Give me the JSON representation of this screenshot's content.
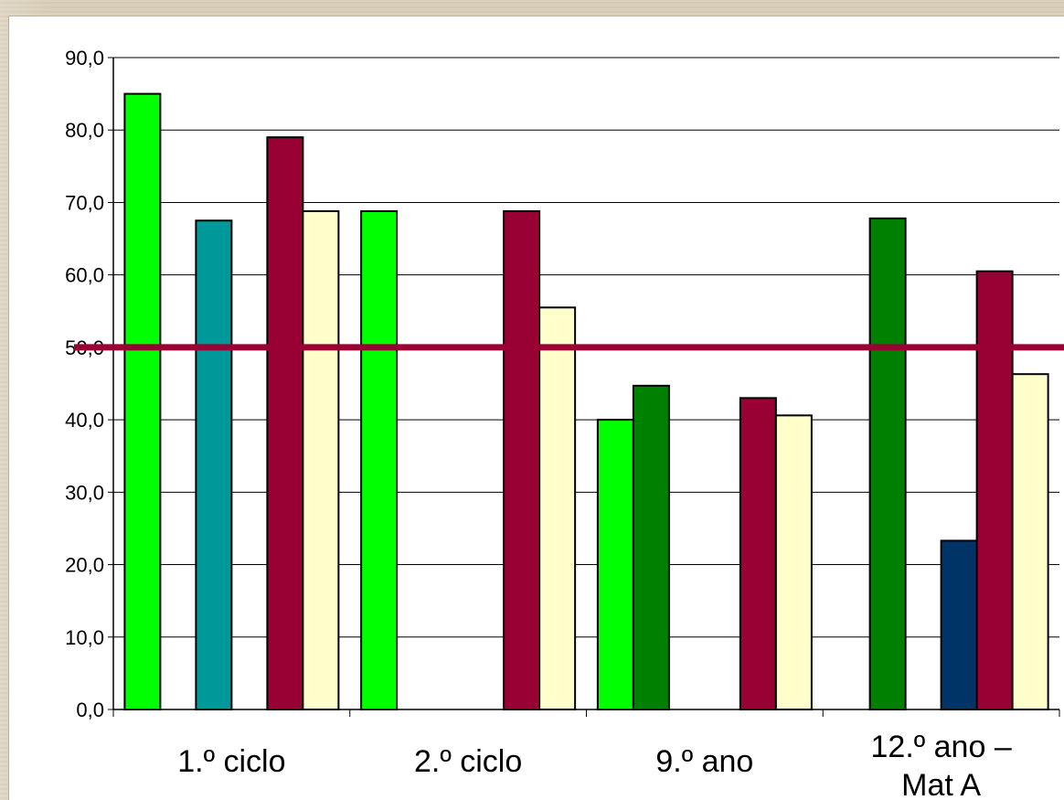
{
  "chart_data": {
    "type": "bar",
    "title": "",
    "xlabel": "",
    "ylabel": "",
    "ylim": [
      0,
      90
    ],
    "y_ticks": [
      "0,0",
      "10,0",
      "20,0",
      "30,0",
      "40,0",
      "50,0",
      "60,0",
      "70,0",
      "80,0",
      "90,0"
    ],
    "grid": true,
    "legend": "none",
    "categories": [
      [
        "1.º ciclo"
      ],
      [
        "2.º ciclo"
      ],
      [
        "9.º ano"
      ],
      [
        "12.º ano –",
        "Mat A"
      ]
    ],
    "series": [
      {
        "color": "#00ff00",
        "values": [
          85.0,
          68.8,
          40.0,
          null
        ]
      },
      {
        "color": "#008000",
        "values": [
          null,
          null,
          44.7,
          67.8
        ]
      },
      {
        "color": "#009999",
        "values": [
          67.5,
          null,
          null,
          null
        ]
      },
      {
        "color": "#003366",
        "values": [
          null,
          null,
          null,
          23.3
        ]
      },
      {
        "color": "#990033",
        "values": [
          79.0,
          68.8,
          43.0,
          60.5
        ]
      },
      {
        "color": "#ffffcc",
        "values": [
          68.8,
          55.5,
          40.6,
          46.3
        ]
      }
    ],
    "reference_line": {
      "value": 50,
      "color": "#990033"
    }
  }
}
